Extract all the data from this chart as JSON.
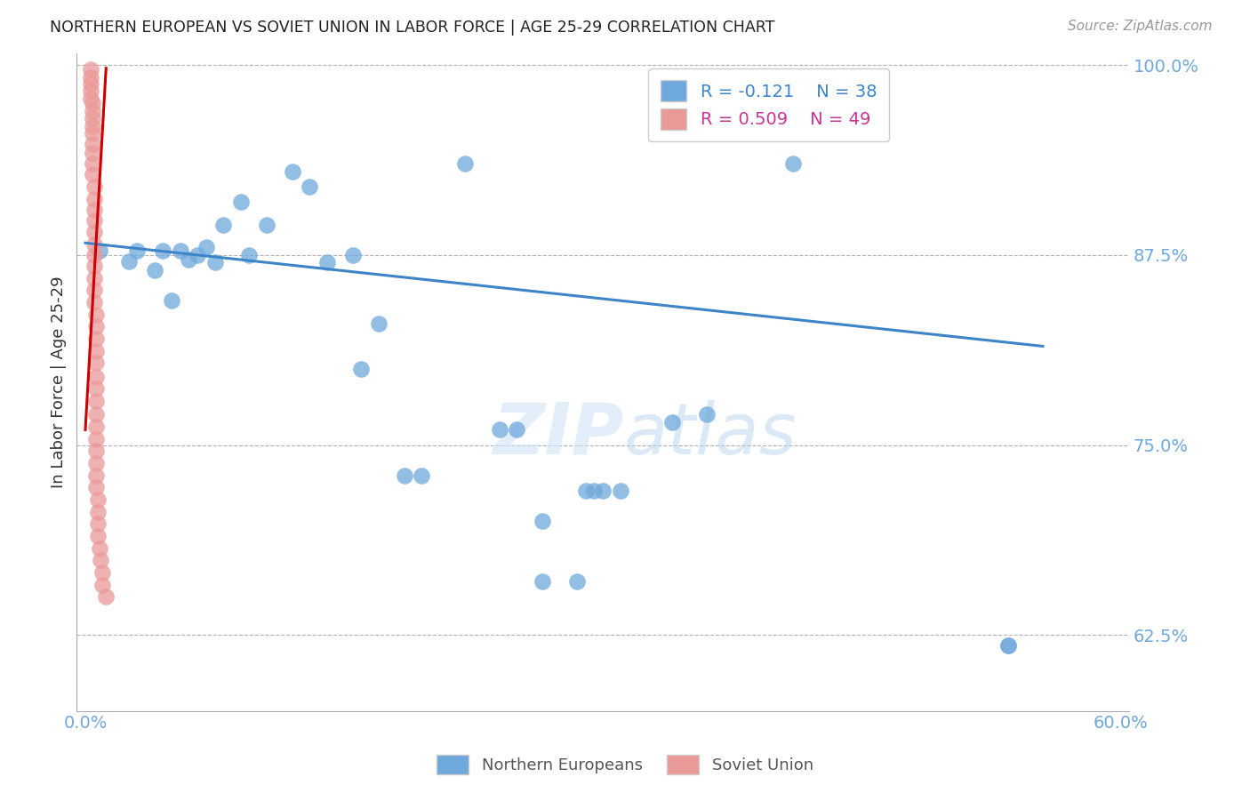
{
  "title": "NORTHERN EUROPEAN VS SOVIET UNION IN LABOR FORCE | AGE 25-29 CORRELATION CHART",
  "source": "Source: ZipAtlas.com",
  "xlabel": "",
  "ylabel": "In Labor Force | Age 25-29",
  "xlim": [
    -0.005,
    0.605
  ],
  "ylim": [
    0.575,
    1.008
  ],
  "yticks": [
    1.0,
    0.875,
    0.75,
    0.625
  ],
  "ytick_labels": [
    "100.0%",
    "87.5%",
    "75.0%",
    "62.5%"
  ],
  "xticks": [
    0.0,
    0.1,
    0.2,
    0.3,
    0.4,
    0.5,
    0.6
  ],
  "xtick_labels": [
    "0.0%",
    "",
    "",
    "",
    "",
    "",
    "60.0%"
  ],
  "blue_color": "#6fa8dc",
  "pink_color": "#ea9999",
  "blue_line_color": "#3d85c8",
  "pink_line_color": "#cc0000",
  "legend_blue_r": "R = -0.121",
  "legend_blue_n": "N = 38",
  "legend_pink_r": "R = 0.509",
  "legend_pink_n": "N = 49",
  "watermark": "ZIPatlas",
  "background_color": "#ffffff",
  "grid_color": "#b0b0b0",
  "title_color": "#222222",
  "axis_label_color": "#333333",
  "tick_label_color": "#6fa8dc",
  "blue_x": [
    0.008,
    0.025,
    0.03,
    0.04,
    0.045,
    0.05,
    0.055,
    0.06,
    0.065,
    0.07,
    0.075,
    0.08,
    0.09,
    0.095,
    0.105,
    0.12,
    0.13,
    0.14,
    0.155,
    0.16,
    0.17,
    0.185,
    0.195,
    0.22,
    0.24,
    0.25,
    0.265,
    0.29,
    0.295,
    0.3,
    0.31,
    0.34,
    0.36,
    0.41,
    0.535,
    0.535,
    0.265,
    0.285
  ],
  "blue_y": [
    0.878,
    0.871,
    0.878,
    0.865,
    0.878,
    0.845,
    0.878,
    0.872,
    0.875,
    0.88,
    0.87,
    0.895,
    0.91,
    0.875,
    0.895,
    0.93,
    0.92,
    0.87,
    0.875,
    0.8,
    0.83,
    0.73,
    0.73,
    0.935,
    0.76,
    0.76,
    0.7,
    0.72,
    0.72,
    0.72,
    0.72,
    0.765,
    0.77,
    0.935,
    0.618,
    0.618,
    0.66,
    0.66
  ],
  "pink_x": [
    0.003,
    0.003,
    0.003,
    0.003,
    0.003,
    0.004,
    0.004,
    0.004,
    0.004,
    0.004,
    0.004,
    0.004,
    0.004,
    0.004,
    0.005,
    0.005,
    0.005,
    0.005,
    0.005,
    0.005,
    0.005,
    0.005,
    0.005,
    0.005,
    0.005,
    0.006,
    0.006,
    0.006,
    0.006,
    0.006,
    0.006,
    0.006,
    0.006,
    0.006,
    0.006,
    0.006,
    0.006,
    0.006,
    0.006,
    0.006,
    0.007,
    0.007,
    0.007,
    0.007,
    0.008,
    0.009,
    0.01,
    0.01,
    0.012
  ],
  "pink_y": [
    0.997,
    0.992,
    0.988,
    0.983,
    0.978,
    0.975,
    0.97,
    0.965,
    0.96,
    0.955,
    0.948,
    0.942,
    0.935,
    0.928,
    0.92,
    0.912,
    0.905,
    0.898,
    0.89,
    0.882,
    0.875,
    0.868,
    0.86,
    0.852,
    0.844,
    0.836,
    0.828,
    0.82,
    0.812,
    0.804,
    0.795,
    0.787,
    0.779,
    0.77,
    0.762,
    0.754,
    0.746,
    0.738,
    0.73,
    0.722,
    0.714,
    0.706,
    0.698,
    0.69,
    0.682,
    0.674,
    0.666,
    0.658,
    0.65
  ],
  "blue_line_x0": 0.0,
  "blue_line_y0": 0.883,
  "blue_line_x1": 0.555,
  "blue_line_y1": 0.815,
  "pink_line_x0": 0.0,
  "pink_line_y0": 0.76,
  "pink_line_x1": 0.012,
  "pink_line_y1": 0.998
}
